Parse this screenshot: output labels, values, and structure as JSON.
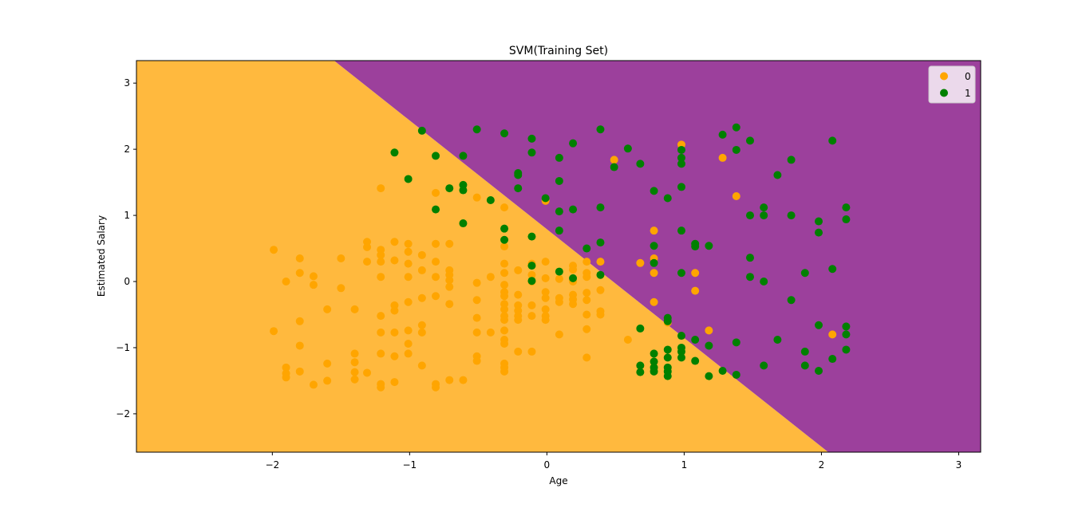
{
  "chart_data": {
    "type": "scatter",
    "title": "SVM(Training Set)",
    "xlabel": "Age",
    "ylabel": "Estimated Salary",
    "xlim": [
      -2.99,
      3.16
    ],
    "ylim": [
      -2.58,
      3.34
    ],
    "xticks": [
      -2,
      -1,
      0,
      1,
      2,
      3
    ],
    "yticks": [
      -2,
      -1,
      0,
      1,
      2,
      3
    ],
    "xtick_labels": [
      "−2",
      "−1",
      "0",
      "1",
      "2",
      "3"
    ],
    "ytick_labels": [
      "−2",
      "−1",
      "0",
      "1",
      "2",
      "3"
    ],
    "grid": false,
    "legend_position": "top-right",
    "decision_boundary": {
      "description_points": [
        [
          -1.55,
          3.34
        ],
        [
          2.05,
          -2.58
        ]
      ]
    },
    "regions": [
      {
        "class": "0",
        "color": "#FFB93E",
        "side": "lower-left"
      },
      {
        "class": "1",
        "color": "#9C409C",
        "side": "upper-right"
      }
    ],
    "series": [
      {
        "name": "0",
        "color": "#FFA500",
        "points": [
          [
            -1.99,
            0.48
          ],
          [
            -1.99,
            -0.75
          ],
          [
            -1.9,
            0.0
          ],
          [
            -1.9,
            -1.3
          ],
          [
            -1.9,
            -1.39
          ],
          [
            -1.9,
            -1.45
          ],
          [
            -1.8,
            0.35
          ],
          [
            -1.8,
            0.13
          ],
          [
            -1.8,
            -0.6
          ],
          [
            -1.8,
            -0.97
          ],
          [
            -1.8,
            -1.36
          ],
          [
            -1.7,
            0.08
          ],
          [
            -1.7,
            -0.05
          ],
          [
            -1.7,
            -1.56
          ],
          [
            -1.6,
            -0.42
          ],
          [
            -1.6,
            -1.24
          ],
          [
            -1.6,
            -1.5
          ],
          [
            -1.5,
            0.35
          ],
          [
            -1.5,
            -0.1
          ],
          [
            -1.4,
            -0.42
          ],
          [
            -1.4,
            -1.09
          ],
          [
            -1.4,
            -1.22
          ],
          [
            -1.4,
            -1.37
          ],
          [
            -1.4,
            -1.48
          ],
          [
            -1.31,
            0.6
          ],
          [
            -1.31,
            0.52
          ],
          [
            -1.31,
            0.3
          ],
          [
            -1.31,
            -1.38
          ],
          [
            -1.21,
            1.41
          ],
          [
            -1.21,
            0.48
          ],
          [
            -1.21,
            0.4
          ],
          [
            -1.21,
            0.3
          ],
          [
            -1.21,
            0.07
          ],
          [
            -1.21,
            -0.52
          ],
          [
            -1.21,
            -0.77
          ],
          [
            -1.21,
            -1.09
          ],
          [
            -1.21,
            -1.55
          ],
          [
            -1.21,
            -1.6
          ],
          [
            -1.11,
            0.6
          ],
          [
            -1.11,
            0.32
          ],
          [
            -1.11,
            -0.36
          ],
          [
            -1.11,
            -0.44
          ],
          [
            -1.11,
            -0.77
          ],
          [
            -1.11,
            -1.13
          ],
          [
            -1.11,
            -1.52
          ],
          [
            -1.01,
            0.57
          ],
          [
            -1.01,
            0.45
          ],
          [
            -1.01,
            0.27
          ],
          [
            -1.01,
            0.07
          ],
          [
            -1.01,
            -0.31
          ],
          [
            -1.01,
            -0.74
          ],
          [
            -1.01,
            -0.94
          ],
          [
            -1.01,
            -1.09
          ],
          [
            -0.91,
            0.4
          ],
          [
            -0.91,
            0.17
          ],
          [
            -0.91,
            -0.25
          ],
          [
            -0.91,
            -0.66
          ],
          [
            -0.91,
            -0.77
          ],
          [
            -0.91,
            -1.27
          ],
          [
            -0.81,
            1.34
          ],
          [
            -0.81,
            0.57
          ],
          [
            -0.81,
            0.3
          ],
          [
            -0.81,
            0.07
          ],
          [
            -0.81,
            -0.22
          ],
          [
            -0.81,
            -1.55
          ],
          [
            -0.81,
            -1.6
          ],
          [
            -0.71,
            0.57
          ],
          [
            -0.71,
            0.17
          ],
          [
            -0.71,
            0.1
          ],
          [
            -0.71,
            0.02
          ],
          [
            -0.71,
            -0.08
          ],
          [
            -0.71,
            -0.34
          ],
          [
            -0.71,
            -1.49
          ],
          [
            -0.61,
            -1.49
          ],
          [
            -0.51,
            1.27
          ],
          [
            -0.51,
            -0.02
          ],
          [
            -0.51,
            -0.28
          ],
          [
            -0.51,
            -0.55
          ],
          [
            -0.51,
            -0.77
          ],
          [
            -0.51,
            -1.13
          ],
          [
            -0.51,
            -1.2
          ],
          [
            -0.41,
            0.07
          ],
          [
            -0.41,
            -0.77
          ],
          [
            -0.31,
            1.12
          ],
          [
            -0.31,
            0.53
          ],
          [
            -0.31,
            0.27
          ],
          [
            -0.31,
            0.13
          ],
          [
            -0.31,
            -0.05
          ],
          [
            -0.31,
            -0.16
          ],
          [
            -0.31,
            -0.22
          ],
          [
            -0.31,
            -0.34
          ],
          [
            -0.31,
            -0.42
          ],
          [
            -0.31,
            -0.52
          ],
          [
            -0.31,
            -0.58
          ],
          [
            -0.31,
            -0.74
          ],
          [
            -0.31,
            -0.88
          ],
          [
            -0.31,
            -0.94
          ],
          [
            -0.31,
            -1.24
          ],
          [
            -0.31,
            -1.3
          ],
          [
            -0.31,
            -1.36
          ],
          [
            -0.21,
            0.17
          ],
          [
            -0.21,
            -0.2
          ],
          [
            -0.21,
            -0.36
          ],
          [
            -0.21,
            -0.44
          ],
          [
            -0.21,
            -0.52
          ],
          [
            -0.21,
            -0.58
          ],
          [
            -0.21,
            -1.06
          ],
          [
            -0.11,
            0.27
          ],
          [
            -0.11,
            0.1
          ],
          [
            -0.11,
            0.0
          ],
          [
            -0.11,
            -0.36
          ],
          [
            -0.11,
            -0.52
          ],
          [
            -0.11,
            -1.06
          ],
          [
            -0.01,
            1.22
          ],
          [
            -0.01,
            0.3
          ],
          [
            -0.01,
            0.05
          ],
          [
            -0.01,
            -0.16
          ],
          [
            -0.01,
            -0.25
          ],
          [
            -0.01,
            -0.42
          ],
          [
            -0.01,
            -0.52
          ],
          [
            -0.01,
            -0.58
          ],
          [
            0.09,
            0.04
          ],
          [
            0.09,
            -0.25
          ],
          [
            0.09,
            -0.31
          ],
          [
            0.09,
            -0.8
          ],
          [
            0.19,
            0.24
          ],
          [
            0.19,
            0.18
          ],
          [
            0.19,
            0.0
          ],
          [
            0.19,
            -0.2
          ],
          [
            0.19,
            -0.27
          ],
          [
            0.19,
            -0.34
          ],
          [
            0.29,
            0.3
          ],
          [
            0.29,
            0.13
          ],
          [
            0.29,
            0.07
          ],
          [
            0.29,
            -0.17
          ],
          [
            0.29,
            -0.28
          ],
          [
            0.29,
            -0.5
          ],
          [
            0.29,
            -0.72
          ],
          [
            0.29,
            -1.15
          ],
          [
            0.39,
            0.3
          ],
          [
            0.39,
            -0.13
          ],
          [
            0.39,
            -0.45
          ],
          [
            0.39,
            -0.5
          ],
          [
            0.49,
            1.84
          ],
          [
            0.59,
            -0.88
          ],
          [
            0.68,
            0.28
          ],
          [
            0.78,
            0.77
          ],
          [
            0.78,
            0.35
          ],
          [
            0.78,
            0.13
          ],
          [
            0.78,
            -0.31
          ],
          [
            0.88,
            -0.62
          ],
          [
            0.98,
            2.07
          ],
          [
            1.08,
            0.13
          ],
          [
            1.08,
            -0.14
          ],
          [
            1.18,
            -0.74
          ],
          [
            1.28,
            1.87
          ],
          [
            1.38,
            1.29
          ],
          [
            2.08,
            -0.8
          ]
        ]
      },
      {
        "name": "1",
        "color": "#008000",
        "points": [
          [
            -1.11,
            1.95
          ],
          [
            -1.01,
            1.55
          ],
          [
            -0.91,
            2.28
          ],
          [
            -0.81,
            1.9
          ],
          [
            -0.81,
            1.09
          ],
          [
            -0.71,
            1.41
          ],
          [
            -0.61,
            1.9
          ],
          [
            -0.61,
            1.46
          ],
          [
            -0.61,
            1.38
          ],
          [
            -0.61,
            0.88
          ],
          [
            -0.51,
            2.3
          ],
          [
            -0.41,
            1.23
          ],
          [
            -0.31,
            2.24
          ],
          [
            -0.31,
            0.8
          ],
          [
            -0.31,
            0.63
          ],
          [
            -0.21,
            1.64
          ],
          [
            -0.21,
            1.61
          ],
          [
            -0.21,
            1.41
          ],
          [
            -0.11,
            2.16
          ],
          [
            -0.11,
            1.95
          ],
          [
            -0.11,
            0.68
          ],
          [
            -0.11,
            0.24
          ],
          [
            -0.11,
            0.01
          ],
          [
            -0.01,
            1.26
          ],
          [
            0.09,
            1.87
          ],
          [
            0.09,
            1.52
          ],
          [
            0.09,
            1.06
          ],
          [
            0.09,
            0.77
          ],
          [
            0.09,
            0.15
          ],
          [
            0.19,
            2.09
          ],
          [
            0.19,
            1.09
          ],
          [
            0.19,
            0.05
          ],
          [
            0.29,
            0.5
          ],
          [
            0.39,
            2.3
          ],
          [
            0.39,
            1.12
          ],
          [
            0.39,
            0.59
          ],
          [
            0.39,
            0.1
          ],
          [
            0.49,
            1.73
          ],
          [
            0.59,
            2.01
          ],
          [
            0.68,
            1.78
          ],
          [
            0.68,
            -0.71
          ],
          [
            0.68,
            -1.27
          ],
          [
            0.68,
            -1.37
          ],
          [
            0.78,
            1.37
          ],
          [
            0.78,
            0.54
          ],
          [
            0.78,
            0.28
          ],
          [
            0.78,
            -1.09
          ],
          [
            0.78,
            -1.21
          ],
          [
            0.78,
            -1.3
          ],
          [
            0.78,
            -1.36
          ],
          [
            0.88,
            1.26
          ],
          [
            0.88,
            -0.55
          ],
          [
            0.88,
            -0.6
          ],
          [
            0.88,
            -1.03
          ],
          [
            0.88,
            -1.15
          ],
          [
            0.88,
            -1.3
          ],
          [
            0.88,
            -1.36
          ],
          [
            0.88,
            -1.43
          ],
          [
            0.98,
            1.99
          ],
          [
            0.98,
            1.87
          ],
          [
            0.98,
            1.78
          ],
          [
            0.98,
            1.43
          ],
          [
            0.98,
            0.77
          ],
          [
            0.98,
            0.13
          ],
          [
            0.98,
            -0.82
          ],
          [
            0.98,
            -1.0
          ],
          [
            0.98,
            -1.06
          ],
          [
            0.98,
            -1.15
          ],
          [
            1.08,
            0.57
          ],
          [
            1.08,
            0.53
          ],
          [
            1.08,
            -0.88
          ],
          [
            1.08,
            -1.2
          ],
          [
            1.18,
            0.54
          ],
          [
            1.18,
            -0.97
          ],
          [
            1.18,
            -1.43
          ],
          [
            1.28,
            2.22
          ],
          [
            1.28,
            -1.35
          ],
          [
            1.38,
            2.33
          ],
          [
            1.38,
            1.99
          ],
          [
            1.38,
            -0.92
          ],
          [
            1.38,
            -1.41
          ],
          [
            1.48,
            2.13
          ],
          [
            1.48,
            1.0
          ],
          [
            1.48,
            0.36
          ],
          [
            1.48,
            0.07
          ],
          [
            1.58,
            1.12
          ],
          [
            1.58,
            1.0
          ],
          [
            1.58,
            0.0
          ],
          [
            1.58,
            -1.27
          ],
          [
            1.68,
            1.61
          ],
          [
            1.68,
            -0.88
          ],
          [
            1.78,
            1.84
          ],
          [
            1.78,
            1.0
          ],
          [
            1.78,
            -0.28
          ],
          [
            1.88,
            0.13
          ],
          [
            1.88,
            -1.06
          ],
          [
            1.88,
            -1.27
          ],
          [
            1.98,
            0.91
          ],
          [
            1.98,
            0.74
          ],
          [
            1.98,
            -0.66
          ],
          [
            1.98,
            -1.35
          ],
          [
            2.08,
            2.13
          ],
          [
            2.08,
            0.19
          ],
          [
            2.08,
            -1.17
          ],
          [
            2.18,
            1.12
          ],
          [
            2.18,
            0.94
          ],
          [
            2.18,
            -0.68
          ],
          [
            2.18,
            -0.8
          ],
          [
            2.18,
            -1.03
          ]
        ]
      }
    ]
  }
}
